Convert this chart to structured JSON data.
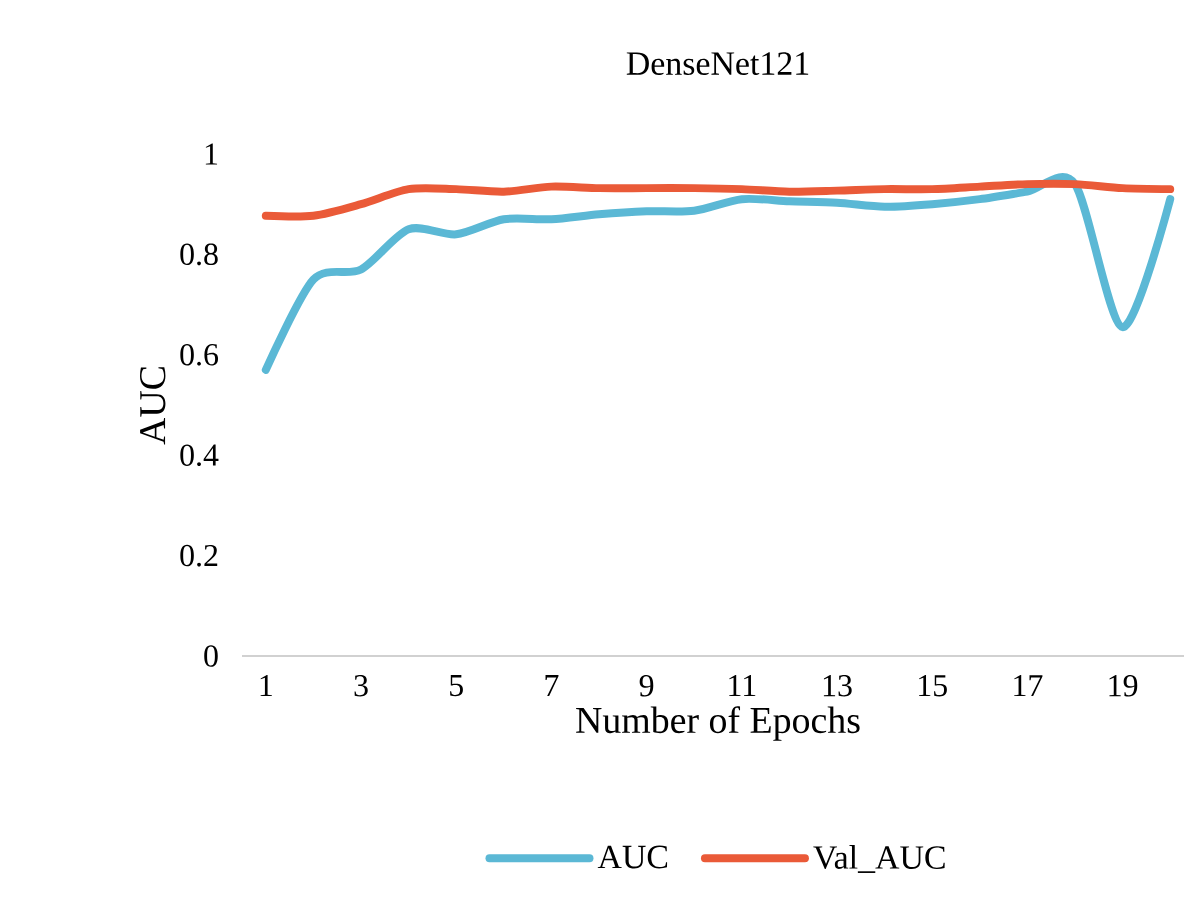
{
  "chart_data": {
    "type": "line",
    "title": "DenseNet121",
    "xlabel": "Number of Epochs",
    "ylabel": "AUC",
    "categories": [
      "1",
      null,
      "3",
      null,
      "5",
      null,
      "7",
      null,
      "9",
      null,
      "11",
      null,
      "13",
      null,
      "15",
      null,
      "17",
      null,
      "19",
      null
    ],
    "series": [
      {
        "name": "AUC",
        "color": "#5bb8d5",
        "values": [
          0.57,
          0.75,
          0.77,
          0.85,
          0.84,
          0.87,
          0.87,
          0.88,
          0.886,
          0.887,
          0.91,
          0.906,
          0.903,
          0.895,
          0.9,
          0.91,
          0.925,
          0.94,
          0.655,
          0.91
        ]
      },
      {
        "name": "Val_AUC",
        "color": "#ea5a38",
        "values": [
          0.877,
          0.877,
          0.9,
          0.93,
          0.93,
          0.925,
          0.935,
          0.932,
          0.932,
          0.932,
          0.93,
          0.925,
          0.927,
          0.93,
          0.93,
          0.935,
          0.94,
          0.94,
          0.932,
          0.93
        ]
      }
    ],
    "ylim": [
      0,
      1
    ],
    "yticks": [
      0,
      0.2,
      0.4,
      0.6,
      0.8,
      1
    ],
    "grid": false,
    "legend": "bottom",
    "marker": "none",
    "line_style": "solid"
  }
}
